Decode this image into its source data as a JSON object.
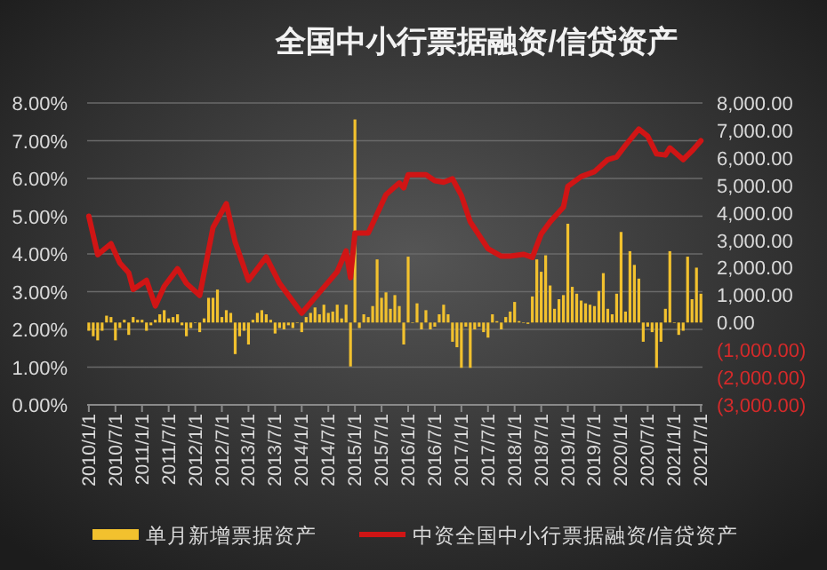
{
  "chart_data": {
    "type": "bar",
    "title": "全国中小行票据融资/信贷资产",
    "x": [
      "2010-01",
      "2010-02",
      "2010-03",
      "2010-04",
      "2010-05",
      "2010-06",
      "2010-07",
      "2010-08",
      "2010-09",
      "2010-10",
      "2010-11",
      "2010-12",
      "2011-01",
      "2011-02",
      "2011-03",
      "2011-04",
      "2011-05",
      "2011-06",
      "2011-07",
      "2011-08",
      "2011-09",
      "2011-10",
      "2011-11",
      "2011-12",
      "2012-01",
      "2012-02",
      "2012-03",
      "2012-04",
      "2012-05",
      "2012-06",
      "2012-07",
      "2012-08",
      "2012-09",
      "2012-10",
      "2012-11",
      "2012-12",
      "2013-01",
      "2013-02",
      "2013-03",
      "2013-04",
      "2013-05",
      "2013-06",
      "2013-07",
      "2013-08",
      "2013-09",
      "2013-10",
      "2013-11",
      "2013-12",
      "2014-01",
      "2014-02",
      "2014-03",
      "2014-04",
      "2014-05",
      "2014-06",
      "2014-07",
      "2014-08",
      "2014-09",
      "2014-10",
      "2014-11",
      "2014-12",
      "2015-01",
      "2015-02",
      "2015-03",
      "2015-04",
      "2015-05",
      "2015-06",
      "2015-07",
      "2015-08",
      "2015-09",
      "2015-10",
      "2015-11",
      "2015-12",
      "2016-01",
      "2016-02",
      "2016-03",
      "2016-04",
      "2016-05",
      "2016-06",
      "2016-07",
      "2016-08",
      "2016-09",
      "2016-10",
      "2016-11",
      "2016-12",
      "2017-01",
      "2017-02",
      "2017-03",
      "2017-04",
      "2017-05",
      "2017-06",
      "2017-07",
      "2017-08",
      "2017-09",
      "2017-10",
      "2017-11",
      "2017-12",
      "2018-01",
      "2018-02",
      "2018-03",
      "2018-04",
      "2018-05",
      "2018-06",
      "2018-07",
      "2018-08",
      "2018-09",
      "2018-10",
      "2018-11",
      "2018-12",
      "2019-01",
      "2019-02",
      "2019-03",
      "2019-04",
      "2019-05",
      "2019-06",
      "2019-07",
      "2019-08",
      "2019-09",
      "2019-10",
      "2019-11",
      "2019-12",
      "2020-01",
      "2020-02",
      "2020-03",
      "2020-04",
      "2020-05",
      "2020-06",
      "2020-07",
      "2020-08",
      "2020-09",
      "2020-10",
      "2020-11",
      "2020-12",
      "2021-01",
      "2021-02",
      "2021-03",
      "2021-04",
      "2021-05",
      "2021-06",
      "2021-07"
    ],
    "series": [
      {
        "name": "单月新增票据资产",
        "axis": "y2",
        "color": "#f2c12e",
        "values": [
          -300,
          -500,
          -650,
          -300,
          250,
          200,
          -650,
          -200,
          100,
          -450,
          200,
          100,
          100,
          -300,
          -100,
          100,
          300,
          450,
          150,
          200,
          300,
          -100,
          -500,
          -200,
          0,
          -350,
          150,
          900,
          900,
          1200,
          200,
          450,
          350,
          -1150,
          -500,
          -300,
          -800,
          100,
          350,
          450,
          300,
          100,
          -400,
          -200,
          -250,
          -100,
          -200,
          0,
          -350,
          200,
          350,
          550,
          300,
          650,
          350,
          400,
          650,
          150,
          650,
          -1600,
          7400,
          -200,
          300,
          200,
          600,
          2300,
          900,
          1100,
          500,
          1000,
          600,
          -800,
          2400,
          0,
          700,
          -250,
          450,
          -250,
          -150,
          300,
          650,
          300,
          -700,
          -900,
          -1650,
          -150,
          -1650,
          -250,
          -150,
          -350,
          -550,
          300,
          50,
          -250,
          200,
          400,
          750,
          50,
          0,
          -50,
          950,
          2300,
          1850,
          2450,
          1350,
          500,
          850,
          1000,
          3600,
          1300,
          1050,
          800,
          700,
          650,
          600,
          1150,
          1800,
          500,
          300,
          1050,
          3300,
          400,
          2600,
          2100,
          1600,
          -700,
          -150,
          -350,
          -1650,
          -700,
          500,
          2600,
          0,
          -450,
          -300,
          2400,
          850,
          2000,
          1050
        ]
      },
      {
        "name": "中资全国中小行票据融资/信贷资产",
        "type": "line",
        "axis": "y",
        "color": "#d01515",
        "x": [
          "2010-01",
          "2010-03",
          "2010-06",
          "2010-08",
          "2010-10",
          "2010-11",
          "2011-02",
          "2011-04",
          "2011-06",
          "2011-09",
          "2011-11",
          "2012-02",
          "2012-05",
          "2012-08",
          "2012-10",
          "2013-01",
          "2013-05",
          "2013-08",
          "2014-01",
          "2014-05",
          "2014-09",
          "2014-11",
          "2014-12",
          "2015-01",
          "2015-04",
          "2015-08",
          "2015-11",
          "2015-12",
          "2016-01",
          "2016-05",
          "2016-07",
          "2016-09",
          "2016-11",
          "2017-01",
          "2017-03",
          "2017-07",
          "2017-10",
          "2017-12",
          "2018-03",
          "2018-05",
          "2018-07",
          "2018-09",
          "2018-12",
          "2019-01",
          "2019-04",
          "2019-07",
          "2019-10",
          "2019-12",
          "2020-02",
          "2020-05",
          "2020-07",
          "2020-09",
          "2020-11",
          "2020-12",
          "2021-03",
          "2021-05",
          "2021-07"
        ],
        "values": [
          5.0,
          3.98,
          4.27,
          3.76,
          3.5,
          3.06,
          3.3,
          2.62,
          3.14,
          3.61,
          3.22,
          2.9,
          4.7,
          5.33,
          4.31,
          3.3,
          3.92,
          3.22,
          2.43,
          2.98,
          3.53,
          4.08,
          3.37,
          4.55,
          4.55,
          5.57,
          5.88,
          5.75,
          6.1,
          6.1,
          5.94,
          5.9,
          5.99,
          5.55,
          4.85,
          4.14,
          3.94,
          3.94,
          3.99,
          3.91,
          4.53,
          4.85,
          5.24,
          5.79,
          6.05,
          6.18,
          6.5,
          6.57,
          6.88,
          7.31,
          7.12,
          6.65,
          6.62,
          6.81,
          6.5,
          6.73,
          7.0
        ]
      }
    ],
    "xlim": [
      "2009-12-20",
      "2021-07-12"
    ],
    "xticks": [
      {
        "value": "2010-01",
        "label": "2010/1/1"
      },
      {
        "value": "2010-07",
        "label": "2010/7/1"
      },
      {
        "value": "2011-01",
        "label": "2011/1/1"
      },
      {
        "value": "2011-07",
        "label": "2011/7/1"
      },
      {
        "value": "2012-01",
        "label": "2012/1/1"
      },
      {
        "value": "2012-07",
        "label": "2012/7/1"
      },
      {
        "value": "2013-01",
        "label": "2013/1/1"
      },
      {
        "value": "2013-07",
        "label": "2013/7/1"
      },
      {
        "value": "2014-01",
        "label": "2014/1/1"
      },
      {
        "value": "2014-07",
        "label": "2014/7/1"
      },
      {
        "value": "2015-01",
        "label": "2015/1/1"
      },
      {
        "value": "2015-07",
        "label": "2015/7/1"
      },
      {
        "value": "2016-01",
        "label": "2016/1/1"
      },
      {
        "value": "2016-07",
        "label": "2016/7/1"
      },
      {
        "value": "2017-01",
        "label": "2017/1/1"
      },
      {
        "value": "2017-07",
        "label": "2017/7/1"
      },
      {
        "value": "2018-01",
        "label": "2018/1/1"
      },
      {
        "value": "2018-07",
        "label": "2018/7/1"
      },
      {
        "value": "2019-01",
        "label": "2019/1/1"
      },
      {
        "value": "2019-07",
        "label": "2019/7/1"
      },
      {
        "value": "2020-01",
        "label": "2020/1/1"
      },
      {
        "value": "2020-07",
        "label": "2020/7/1"
      },
      {
        "value": "2021-01",
        "label": "2021/1/1"
      },
      {
        "value": "2021-07",
        "label": "2021/7/1"
      }
    ],
    "ylim": [
      0,
      8
    ],
    "yticks": [
      {
        "value": 0,
        "label": "0.00%"
      },
      {
        "value": 1,
        "label": "1.00%"
      },
      {
        "value": 2,
        "label": "2.00%"
      },
      {
        "value": 3,
        "label": "3.00%"
      },
      {
        "value": 4,
        "label": "4.00%"
      },
      {
        "value": 5,
        "label": "5.00%"
      },
      {
        "value": 6,
        "label": "6.00%"
      },
      {
        "value": 7,
        "label": "7.00%"
      },
      {
        "value": 8,
        "label": "8.00%"
      }
    ],
    "y2lim": [
      -3000,
      8000
    ],
    "y2ticks": [
      {
        "value": -3000,
        "label": "(3,000.00)"
      },
      {
        "value": -2000,
        "label": "(2,000.00)"
      },
      {
        "value": -1000,
        "label": "(1,000.00)"
      },
      {
        "value": 0,
        "label": "0.00"
      },
      {
        "value": 1000,
        "label": "1,000.00"
      },
      {
        "value": 2000,
        "label": "2,000.00"
      },
      {
        "value": 3000,
        "label": "3,000.00"
      },
      {
        "value": 4000,
        "label": "4,000.00"
      },
      {
        "value": 5000,
        "label": "5,000.00"
      },
      {
        "value": 6000,
        "label": "6,000.00"
      },
      {
        "value": 7000,
        "label": "7,000.00"
      },
      {
        "value": 8000,
        "label": "8,000.00"
      }
    ],
    "grid": "y",
    "legend": "bottom",
    "marker": "none",
    "line_style": "solid"
  }
}
